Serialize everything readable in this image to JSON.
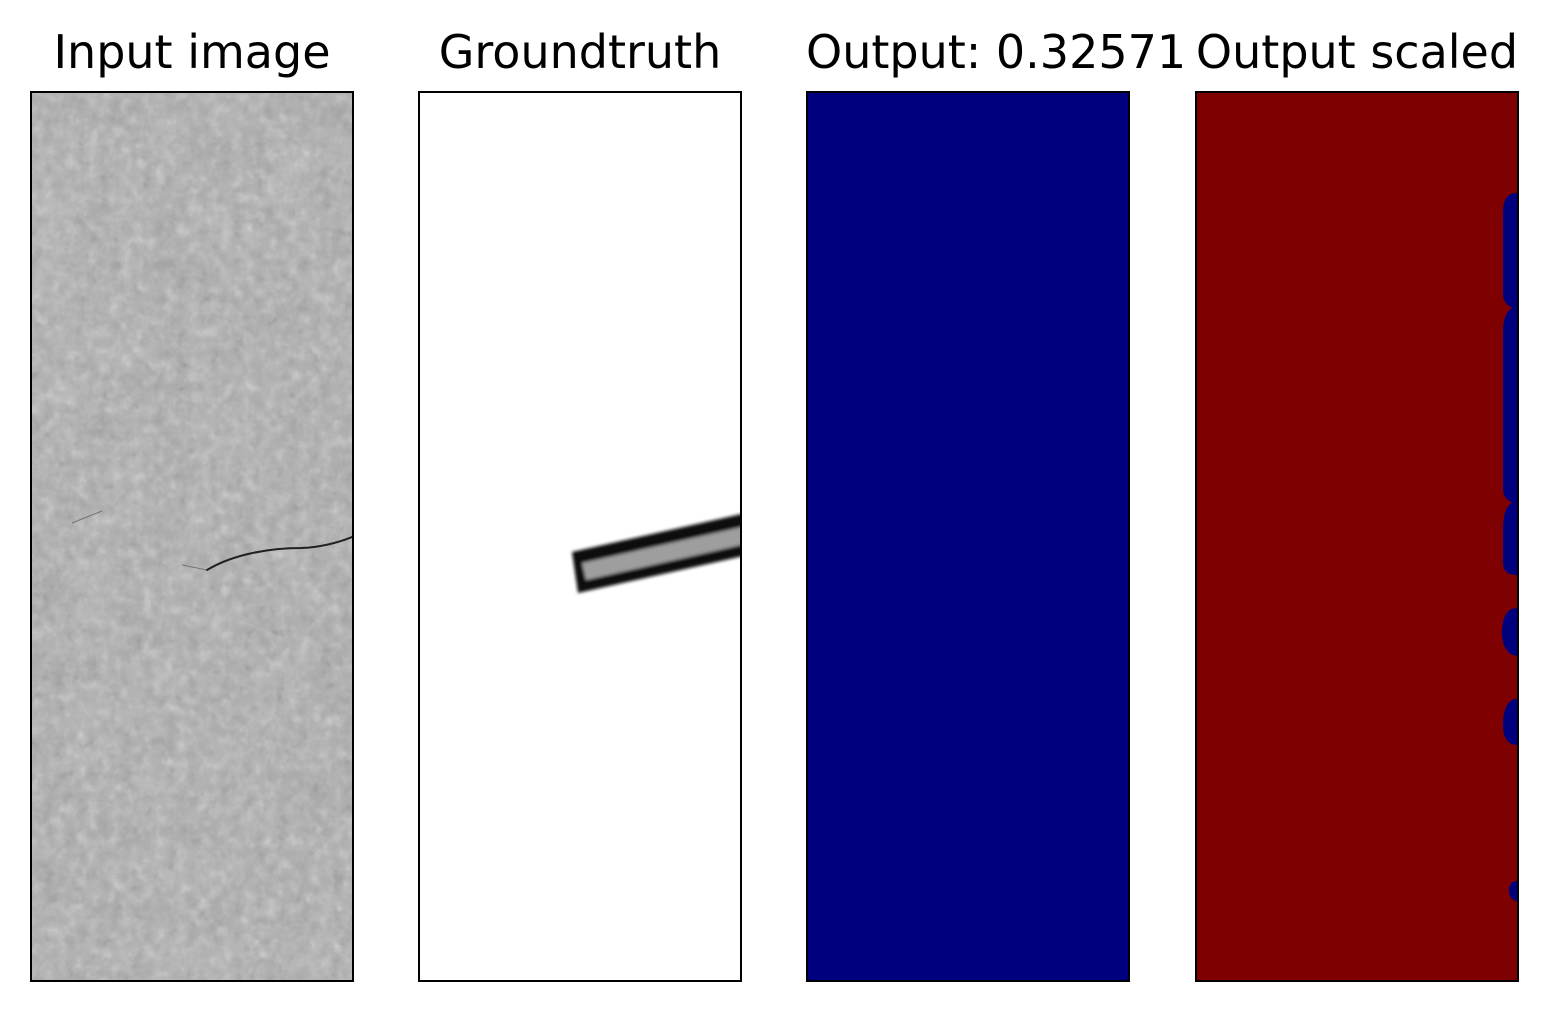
{
  "figure": {
    "panels": [
      {
        "title": "Input image",
        "content": "grayscale concrete texture with a thin dark crack",
        "colors": {
          "base": "#a8a8a8",
          "light": "#dcdcdc",
          "dark": "#7a7a7a",
          "crack": "#2a2a2a"
        }
      },
      {
        "title": "Groundtruth",
        "content": "white background with a short slanted dark bar",
        "colors": {
          "background": "#ffffff",
          "bar_outline": "#111111",
          "bar_inner": "#9a9a9a"
        }
      },
      {
        "title": "Output: 0.32571",
        "content": "uniform navy field",
        "colors": {
          "fill": "#00007f"
        }
      },
      {
        "title": "Output scaled",
        "content": "dark red field with navy blobs along the right edge",
        "colors": {
          "fill": "#7f0000",
          "blobs": "#00007f"
        }
      }
    ]
  }
}
